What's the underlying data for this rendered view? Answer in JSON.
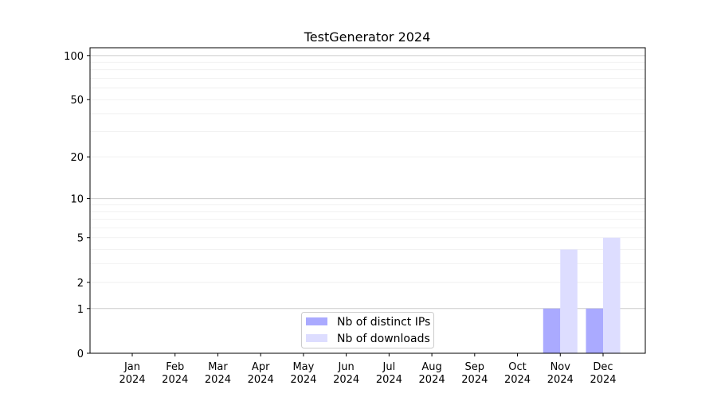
{
  "chart_data": {
    "type": "bar",
    "title": "TestGenerator 2024",
    "xlabel": "",
    "ylabel": "",
    "yscale": "log(1+y)",
    "ylim": [
      0,
      113
    ],
    "grid": true,
    "legend_position": "lower-center",
    "categories": [
      "Jan\n2024",
      "Feb\n2024",
      "Mar\n2024",
      "Apr\n2024",
      "May\n2024",
      "Jun\n2024",
      "Jul\n2024",
      "Aug\n2024",
      "Sep\n2024",
      "Oct\n2024",
      "Nov\n2024",
      "Dec\n2024"
    ],
    "category_lines": [
      [
        "Jan",
        "2024"
      ],
      [
        "Feb",
        "2024"
      ],
      [
        "Mar",
        "2024"
      ],
      [
        "Apr",
        "2024"
      ],
      [
        "May",
        "2024"
      ],
      [
        "Jun",
        "2024"
      ],
      [
        "Jul",
        "2024"
      ],
      [
        "Aug",
        "2024"
      ],
      [
        "Sep",
        "2024"
      ],
      [
        "Oct",
        "2024"
      ],
      [
        "Nov",
        "2024"
      ],
      [
        "Dec",
        "2024"
      ]
    ],
    "yticks": [
      "0",
      "1",
      "2",
      "5",
      "10",
      "20",
      "50",
      "100"
    ],
    "series": [
      {
        "name": "Nb of distinct IPs",
        "color": "#aaaaff",
        "values": [
          0,
          0,
          0,
          0,
          0,
          0,
          0,
          0,
          0,
          0,
          1,
          1
        ]
      },
      {
        "name": "Nb of downloads",
        "color": "#ddddff",
        "values": [
          0,
          0,
          0,
          0,
          0,
          0,
          0,
          0,
          0,
          0,
          4,
          5
        ]
      }
    ]
  }
}
